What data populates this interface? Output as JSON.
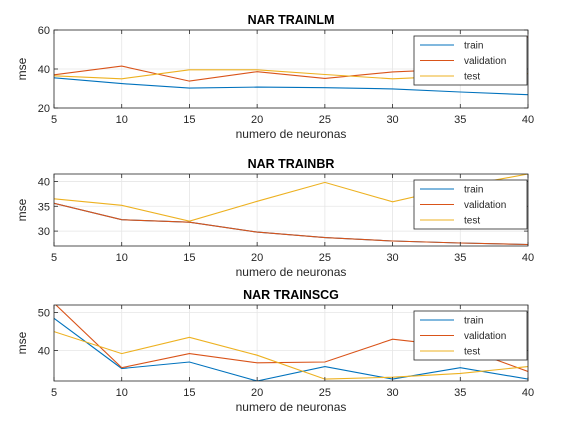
{
  "chart_data": [
    {
      "type": "line",
      "title": "NAR TRAINLM",
      "xlabel": "numero de neuronas",
      "ylabel": "mse",
      "x": [
        5,
        10,
        15,
        20,
        25,
        30,
        35,
        40
      ],
      "xlim": [
        5,
        40
      ],
      "ylim": [
        20,
        60
      ],
      "xticks": [
        5,
        10,
        15,
        20,
        25,
        30,
        35,
        40
      ],
      "yticks": [
        20,
        40,
        60
      ],
      "grid": true,
      "legend_position": "top-right",
      "series": [
        {
          "name": "train",
          "color": "#0072BD",
          "values": [
            35.5,
            32.5,
            30.2,
            30.7,
            30.4,
            29.8,
            28.2,
            26.8
          ]
        },
        {
          "name": "validation",
          "color": "#D95319",
          "values": [
            37.0,
            41.5,
            33.8,
            38.6,
            35.2,
            38.5,
            40.0,
            56.5
          ]
        },
        {
          "name": "test",
          "color": "#EDB120",
          "values": [
            36.5,
            35.0,
            39.6,
            39.6,
            37.2,
            35.0,
            36.5,
            37.6
          ]
        }
      ]
    },
    {
      "type": "line",
      "title": "NAR TRAINBR",
      "xlabel": "numero de neuronas",
      "ylabel": "mse",
      "x": [
        5,
        10,
        15,
        20,
        25,
        30,
        35,
        40
      ],
      "xlim": [
        5,
        40
      ],
      "ylim": [
        27,
        41.5
      ],
      "xticks": [
        5,
        10,
        15,
        20,
        25,
        30,
        35,
        40
      ],
      "yticks": [
        30,
        35,
        40
      ],
      "grid": true,
      "legend_position": "top-right",
      "series": [
        {
          "name": "train",
          "color": "#0072BD",
          "values": [
            35.6,
            32.3,
            31.8,
            29.8,
            28.7,
            28.0,
            27.6,
            27.3
          ]
        },
        {
          "name": "validation",
          "color": "#D95319",
          "values": [
            35.6,
            32.3,
            31.8,
            29.8,
            28.7,
            28.0,
            27.6,
            27.3
          ]
        },
        {
          "name": "test",
          "color": "#EDB120",
          "values": [
            36.5,
            35.2,
            32.0,
            36.0,
            39.8,
            35.9,
            39.0,
            41.5
          ]
        }
      ]
    },
    {
      "type": "line",
      "title": "NAR TRAINSCG",
      "xlabel": "numero de neuronas",
      "ylabel": "mse",
      "x": [
        5,
        10,
        15,
        20,
        25,
        30,
        35,
        40
      ],
      "xlim": [
        5,
        40
      ],
      "ylim": [
        32,
        52
      ],
      "xticks": [
        5,
        10,
        15,
        20,
        25,
        30,
        35,
        40
      ],
      "yticks": [
        40,
        50
      ],
      "grid": true,
      "legend_position": "top-right",
      "series": [
        {
          "name": "train",
          "color": "#0072BD",
          "values": [
            48.5,
            35.3,
            37.0,
            32.0,
            35.8,
            32.5,
            35.5,
            32.5
          ]
        },
        {
          "name": "validation",
          "color": "#D95319",
          "values": [
            52.5,
            35.5,
            39.2,
            36.8,
            37.0,
            43.0,
            41.0,
            34.5
          ]
        },
        {
          "name": "test",
          "color": "#EDB120",
          "values": [
            45.0,
            39.2,
            43.5,
            38.8,
            32.5,
            33.0,
            34.0,
            35.8
          ]
        }
      ]
    }
  ]
}
